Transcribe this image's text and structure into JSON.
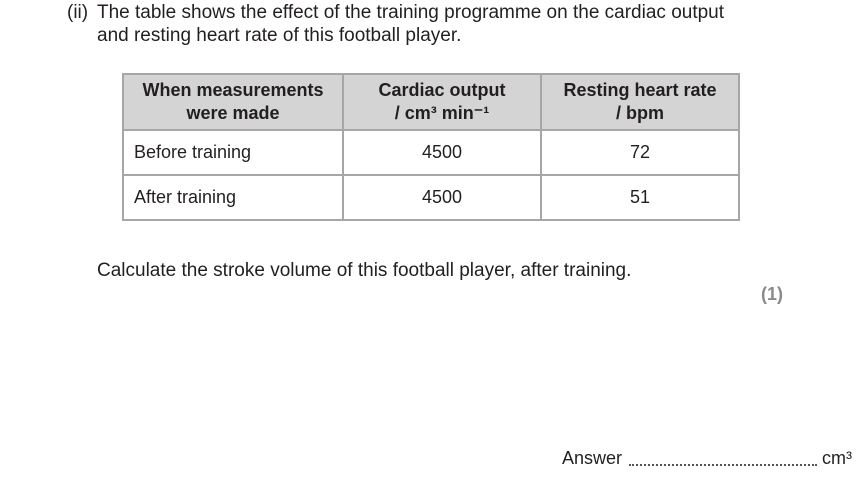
{
  "question": {
    "label": "(ii)",
    "lines": [
      "The table shows the effect of the training programme on the cardiac output",
      "and resting heart rate of this football player."
    ]
  },
  "table": {
    "header": [
      [
        "When measurements",
        "were made"
      ],
      [
        "Cardiac output",
        "/ cm³ min⁻¹"
      ],
      [
        "Resting heart rate",
        "/ bpm"
      ]
    ],
    "rows": [
      [
        "Before training",
        "4500",
        "72"
      ],
      [
        "After training",
        "4500",
        "51"
      ]
    ]
  },
  "task": "Calculate the stroke volume of this football player, after training.",
  "marks": "(1)",
  "answer": {
    "label": "Answer",
    "unit": "cm³"
  }
}
